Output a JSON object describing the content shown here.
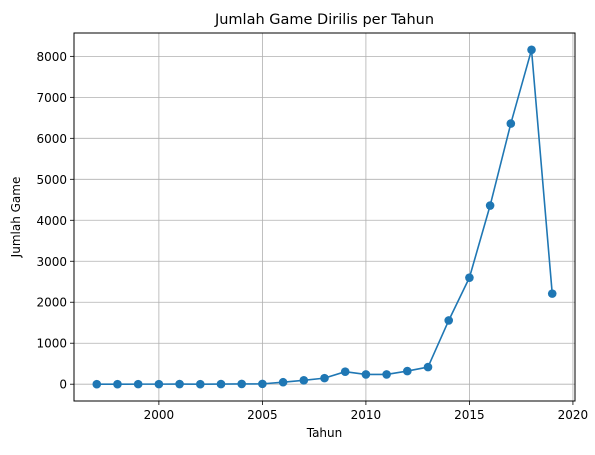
{
  "chart_data": {
    "type": "line",
    "title": "Jumlah Game Dirilis per Tahun",
    "xlabel": "Tahun",
    "ylabel": "Jumlah Game",
    "x": [
      1997,
      1998,
      1999,
      2000,
      2001,
      2002,
      2003,
      2004,
      2005,
      2006,
      2007,
      2008,
      2009,
      2010,
      2011,
      2012,
      2013,
      2014,
      2015,
      2016,
      2017,
      2018,
      2019
    ],
    "series": [
      {
        "values": [
          1,
          1,
          2,
          2,
          4,
          1,
          3,
          6,
          8,
          48,
          95,
          148,
          305,
          238,
          239,
          320,
          418,
          1555,
          2600,
          4360,
          6360,
          8160,
          2210
        ],
        "color": "#1f77b4"
      }
    ],
    "xlim": [
      1995.9,
      2020.1
    ],
    "ylim": [
      -410,
      8570
    ],
    "xticks": [
      2000,
      2005,
      2010,
      2015,
      2020
    ],
    "yticks": [
      0,
      1000,
      2000,
      3000,
      4000,
      5000,
      6000,
      7000,
      8000
    ],
    "xtick_labels": [
      "2000",
      "2005",
      "2010",
      "2015",
      "2020"
    ],
    "ytick_labels": [
      "0",
      "1000",
      "2000",
      "3000",
      "4000",
      "5000",
      "6000",
      "7000",
      "8000"
    ],
    "grid": true,
    "marker": "circle"
  }
}
